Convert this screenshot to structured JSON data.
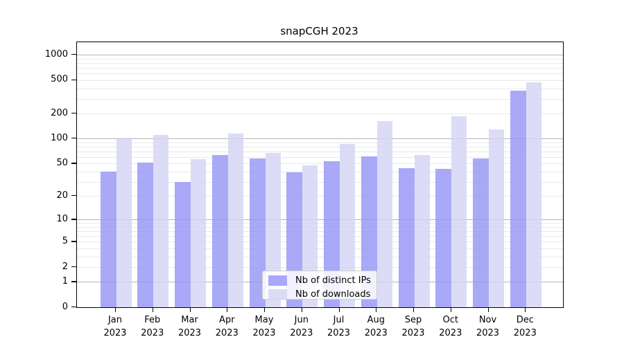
{
  "title": "snapCGH 2023",
  "legend": {
    "items": [
      {
        "label": "Nb of distinct IPs",
        "color": "rgba(148,148,246,0.8)"
      },
      {
        "label": "Nb of downloads",
        "color": "rgba(211,211,244,0.8)"
      }
    ]
  },
  "colors": {
    "distinct_ips_bar": "rgba(148,148,246,0.8)",
    "downloads_bar": "rgba(211,211,244,0.8)",
    "major_gridline": "#b4b4b4",
    "minor_gridline": "#e9e9e9",
    "axis_text": "#000000"
  },
  "chart_data": {
    "type": "bar",
    "title": "snapCGH 2023",
    "categories": [
      "Jan",
      "Feb",
      "Mar",
      "Apr",
      "May",
      "Jun",
      "Jul",
      "Aug",
      "Sep",
      "Oct",
      "Nov",
      "Dec"
    ],
    "x_year": "2023",
    "series": [
      {
        "name": "Nb of distinct IPs",
        "color": "rgba(148,148,246,0.8)",
        "values": [
          40,
          51,
          30,
          64,
          58,
          39,
          53,
          61,
          44,
          43,
          58,
          374
        ]
      },
      {
        "name": "Nb of downloads",
        "color": "rgba(211,211,244,0.8)",
        "values": [
          102,
          110,
          57,
          116,
          68,
          48,
          86,
          162,
          63,
          185,
          130,
          470
        ]
      }
    ],
    "y_ticks": [
      0,
      1,
      2,
      5,
      10,
      20,
      50,
      100,
      200,
      500,
      1000
    ],
    "y_major_gridlines": [
      1,
      10,
      100,
      1000
    ],
    "scale": "log10(1+y)",
    "ylim": [
      0,
      1413
    ],
    "xlabel": "",
    "ylabel": "",
    "grid": "horizontal, major and minor",
    "legend_position": "lower center"
  }
}
